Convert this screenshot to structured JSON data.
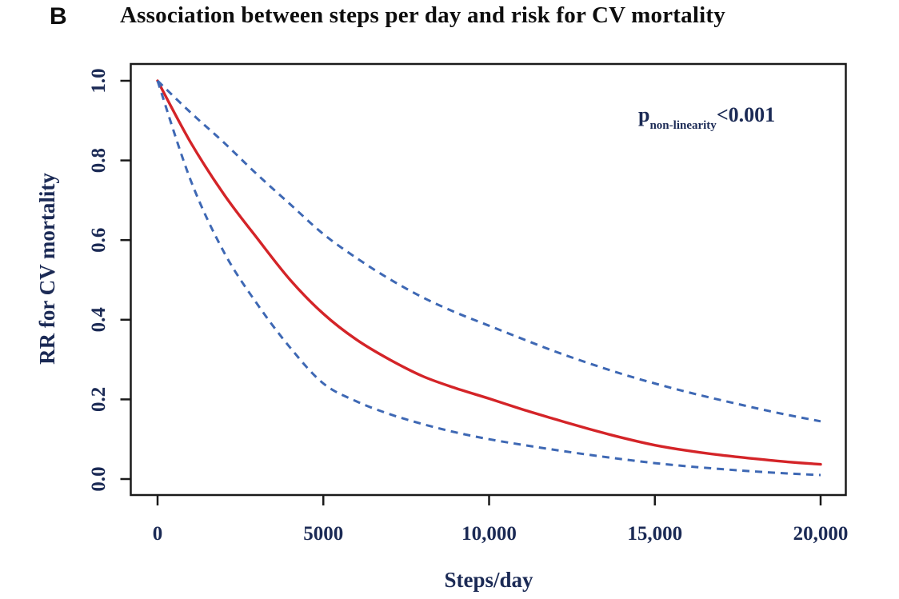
{
  "page": {
    "background": "#ffffff"
  },
  "chart_data": {
    "type": "line",
    "panel_label": "B",
    "title": "Association between steps per day and risk for CV mortality",
    "xlabel": "Steps/day",
    "ylabel": "RR for CV mortality",
    "xlim": [
      0,
      20000
    ],
    "ylim": [
      0,
      1.0
    ],
    "grid": false,
    "legend": "none",
    "x_tick_values": [
      0,
      5000,
      10000,
      15000,
      20000
    ],
    "x_tick_labels": [
      "0",
      "5000",
      "10,000",
      "15,000",
      "20,000"
    ],
    "y_tick_values": [
      0.0,
      0.2,
      0.4,
      0.6,
      0.8,
      1.0
    ],
    "y_tick_labels": [
      "0.0",
      "0.2",
      "0.4",
      "0.6",
      "0.8",
      "1.0"
    ],
    "annotation": {
      "text": "p_non-linearity<0.001",
      "prefix": "p",
      "subscript": "non-linearity",
      "value": "<0.001",
      "color": "#1b2a55"
    },
    "x": [
      0,
      1000,
      2000,
      3000,
      4000,
      5000,
      6000,
      7000,
      8000,
      9000,
      10000,
      11000,
      12000,
      13000,
      14000,
      15000,
      16000,
      17000,
      18000,
      19000,
      20000
    ],
    "series": [
      {
        "name": "rr-point-estimate",
        "label": "Relative risk (point estimate)",
        "line_style": "solid",
        "color": "#d42428",
        "values": [
          1.0,
          0.845,
          0.715,
          0.605,
          0.5,
          0.415,
          0.35,
          0.3,
          0.258,
          0.228,
          0.202,
          0.175,
          0.15,
          0.126,
          0.104,
          0.085,
          0.071,
          0.06,
          0.051,
          0.043,
          0.037
        ]
      },
      {
        "name": "upper-95-ci",
        "label": "Upper 95% confidence limit",
        "line_style": "dashed",
        "color": "#3e68b4",
        "values": [
          1.0,
          0.92,
          0.845,
          0.765,
          0.69,
          0.615,
          0.555,
          0.502,
          0.456,
          0.418,
          0.385,
          0.352,
          0.32,
          0.291,
          0.264,
          0.24,
          0.218,
          0.198,
          0.179,
          0.161,
          0.145
        ]
      },
      {
        "name": "lower-95-ci",
        "label": "Lower 95% confidence limit",
        "line_style": "dashed",
        "color": "#3e68b4",
        "values": [
          1.0,
          0.75,
          0.57,
          0.44,
          0.33,
          0.24,
          0.195,
          0.163,
          0.138,
          0.117,
          0.1,
          0.086,
          0.073,
          0.061,
          0.05,
          0.04,
          0.032,
          0.025,
          0.019,
          0.014,
          0.01
        ]
      }
    ],
    "frame_color": "#1a1a1a",
    "text_color": "#1b2a55",
    "title_color": "#0e0e0e"
  }
}
